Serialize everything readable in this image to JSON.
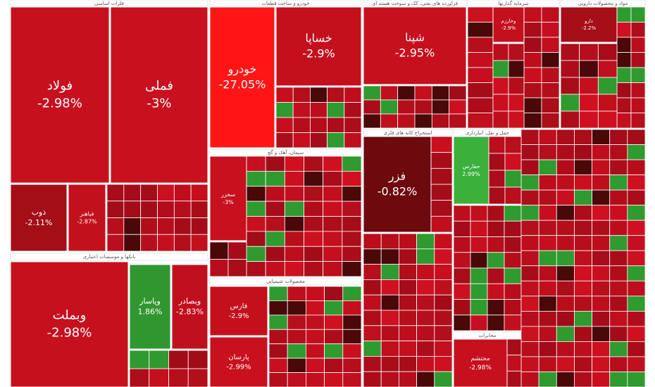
{
  "chart_data": {
    "type": "treemap",
    "groups": [
      {
        "name": "فلزات اساسی",
        "categories": [
          "فولاد",
          "فملی",
          "ذوب",
          "فباهنر"
        ],
        "values": [
          -2.98,
          -3,
          -2.11,
          -2.87
        ],
        "value_labels": [
          "-2.98%",
          "-3%",
          "-2.11%",
          "-2.87%"
        ]
      },
      {
        "name": "بانکها و موسسات اعتباری",
        "categories": [
          "وبملت",
          "وپاسار",
          "وبصادر"
        ],
        "values": [
          -2.98,
          1.86,
          -2.83
        ],
        "value_labels": [
          "-2.98%",
          "1.86%",
          "-2.83%"
        ]
      },
      {
        "name": "خودرو و ساخت قطعات",
        "categories": [
          "خودرو",
          "خساپا"
        ],
        "values": [
          -27.05,
          -2.9
        ],
        "value_labels": [
          "-27.05%",
          "-2.9%"
        ]
      },
      {
        "name": "سیمان، آهک و گچ",
        "categories": [
          "سخزر"
        ],
        "values": [
          -3
        ],
        "value_labels": [
          "-3%"
        ]
      },
      {
        "name": "محصولات شیمیایی",
        "categories": [
          "فارس",
          "پارسان"
        ],
        "values": [
          -2.9,
          -2.99
        ],
        "value_labels": [
          "-2.9%",
          "-2.99%"
        ]
      },
      {
        "name": "فراورده های نفتی، کک و سوخت هسته ای",
        "categories": [
          "شپنا"
        ],
        "values": [
          -2.95
        ],
        "value_labels": [
          "-2.95%"
        ]
      },
      {
        "name": "استخراج کانه های فلزی",
        "categories": [
          "فزر"
        ],
        "values": [
          -0.82
        ],
        "value_labels": [
          "-0.82%"
        ]
      },
      {
        "name": "سرمایه گذاریها",
        "categories": [
          "وخارزم"
        ],
        "values": [
          -2.9
        ],
        "value_labels": [
          "-2.9%"
        ]
      },
      {
        "name": "مواد و محصولات دارویی",
        "categories": [
          "دارو"
        ],
        "values": [
          -2.2
        ],
        "value_labels": [
          "-2.2%"
        ]
      },
      {
        "name": "حمل و نقل، انبارداری",
        "categories": [
          "حفارس"
        ],
        "values": [
          2.99
        ],
        "value_labels": [
          "2.99%"
        ]
      },
      {
        "name": "مخابرات",
        "categories": [
          "محتشم"
        ],
        "values": [
          -2.98
        ],
        "value_labels": [
          "-2.98%"
        ]
      }
    ]
  }
}
